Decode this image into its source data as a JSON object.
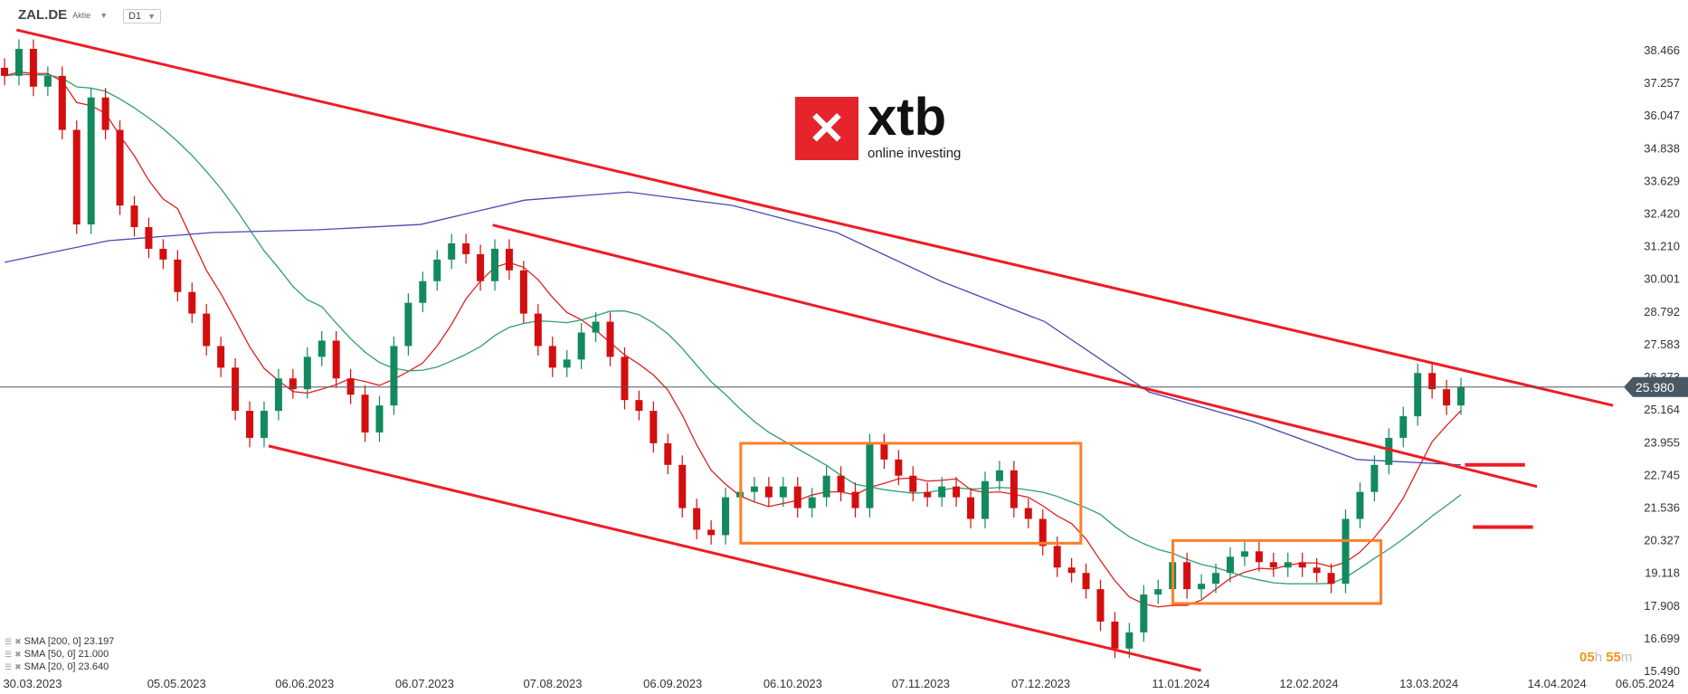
{
  "header": {
    "symbol": "ZAL.DE",
    "kind": "Aktie",
    "timeframe": "D1"
  },
  "logo": {
    "mark": "x",
    "name": "xtb",
    "tagline": "online investing"
  },
  "legend": [
    {
      "label": "SMA [200, 0] 23.197",
      "color": "#4b4bb0"
    },
    {
      "label": "SMA [50, 0] 21.000",
      "color": "#2e9e6e"
    },
    {
      "label": "SMA [20, 0] 23.640",
      "color": "#e02020"
    }
  ],
  "timer": {
    "hours": "05",
    "h": "h",
    "minutes": "55",
    "m": "m"
  },
  "chart_data": {
    "type": "candlestick",
    "title": "",
    "y_ticks": [
      "38.466",
      "37.257",
      "36.047",
      "34.838",
      "33.629",
      "32.420",
      "31.210",
      "30.001",
      "28.792",
      "27.583",
      "26.373",
      "25.164",
      "23.955",
      "22.745",
      "21.536",
      "20.327",
      "19.118",
      "17.908",
      "16.699",
      "15.490"
    ],
    "ylim": [
      15.49,
      38.466
    ],
    "x_ticks": [
      "30.03.2023",
      "05.05.2023",
      "06.06.2023",
      "06.07.2023",
      "07.08.2023",
      "06.09.2023",
      "06.10.2023",
      "07.11.2023",
      "07.12.2023",
      "11.01.2024",
      "12.02.2024",
      "13.03.2024",
      "14.04.2024",
      "06.05.2024"
    ],
    "current_price": "25.980",
    "candles": {
      "first_date": "23.03.2023",
      "last_date": "21.03.2024",
      "closes": [
        37.5,
        38.5,
        37.1,
        37.5,
        35.5,
        32.0,
        36.7,
        35.5,
        32.7,
        31.9,
        31.1,
        30.7,
        29.5,
        28.7,
        27.5,
        26.7,
        25.1,
        24.1,
        25.1,
        26.3,
        25.9,
        27.1,
        27.7,
        26.3,
        25.7,
        24.3,
        25.3,
        27.5,
        29.1,
        29.9,
        30.7,
        31.3,
        30.9,
        29.9,
        31.1,
        30.3,
        28.7,
        27.5,
        26.7,
        27.0,
        28.0,
        28.4,
        27.1,
        25.5,
        25.1,
        23.9,
        23.1,
        21.5,
        20.7,
        20.5,
        21.9,
        22.1,
        22.3,
        21.9,
        22.3,
        21.5,
        21.9,
        22.7,
        22.1,
        21.5,
        23.9,
        23.3,
        22.7,
        22.1,
        21.9,
        22.3,
        21.9,
        21.1,
        22.5,
        22.9,
        21.5,
        21.1,
        20.1,
        19.3,
        19.1,
        18.5,
        17.3,
        16.3,
        16.9,
        18.3,
        18.5,
        19.5,
        18.5,
        18.7,
        19.1,
        19.7,
        19.9,
        19.5,
        19.3,
        19.5,
        19.3,
        19.1,
        18.7,
        21.1,
        22.1,
        23.1,
        24.1,
        24.9,
        26.5,
        25.9,
        25.3,
        25.98
      ]
    },
    "sma200": [
      30.6,
      31.4,
      31.7,
      31.8,
      32.0,
      32.9,
      33.2,
      32.7,
      31.7,
      29.9,
      28.4,
      25.8,
      24.7,
      23.3,
      23.1
    ],
    "up_color": "#138a5e",
    "down_color": "#d40e0e",
    "trend_lines": [
      {
        "from": [
          "26.03.2023",
          39.2
        ],
        "to": [
          "28.04.2024",
          25.3
        ]
      },
      {
        "from": [
          "23.07.2023",
          31.98
        ],
        "to": [
          "09.04.2024",
          22.3
        ]
      },
      {
        "from": [
          "28.05.2023",
          23.8
        ],
        "to": [
          "16.01.2024",
          15.49
        ]
      }
    ],
    "boxes": [
      {
        "from": [
          "23.09.2023",
          23.9
        ],
        "to": [
          "17.12.2023",
          20.2
        ]
      },
      {
        "from": [
          "09.01.2024",
          20.3
        ],
        "to": [
          "01.03.2024",
          17.97
        ]
      }
    ],
    "levels": [
      {
        "from": "22.03.2024",
        "to": "06.04.2024",
        "price": 23.1
      },
      {
        "from": "24.03.2024",
        "to": "08.04.2024",
        "price": 20.8
      }
    ],
    "trend_color": "#ee1c25",
    "box_color": "#ff7f27"
  }
}
